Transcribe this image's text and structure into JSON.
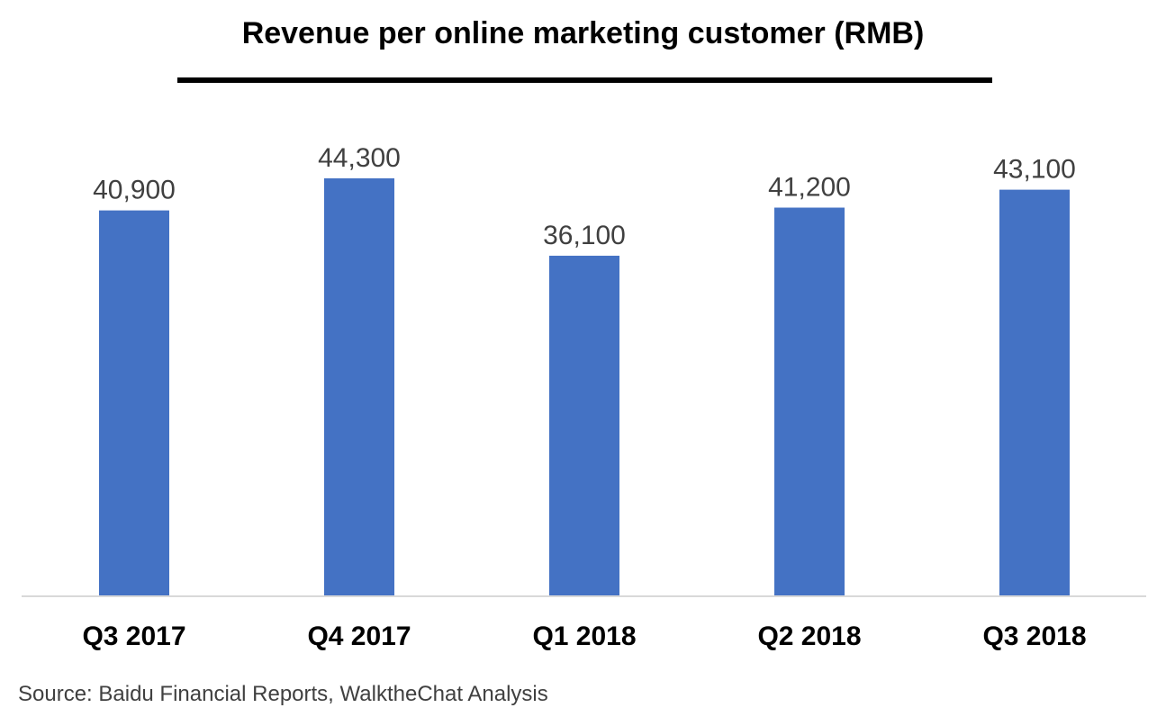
{
  "chart_data": {
    "type": "bar",
    "title": "Revenue per online marketing customer (RMB)",
    "categories": [
      "Q3 2017",
      "Q4 2017",
      "Q1 2018",
      "Q2 2018",
      "Q3 2018"
    ],
    "values": [
      40900,
      44300,
      36100,
      41200,
      43100
    ],
    "value_labels": [
      "40,900",
      "44,300",
      "36,100",
      "41,200",
      "43,100"
    ],
    "xlabel": "",
    "ylabel": "",
    "ylim": [
      0,
      44300
    ],
    "grid": false,
    "legend": "none",
    "bar_color": "#4472C4",
    "axis_color": "#D9D9D9",
    "label_color": "#404040"
  },
  "source": "Source: Baidu Financial Reports, WalktheChat Analysis"
}
